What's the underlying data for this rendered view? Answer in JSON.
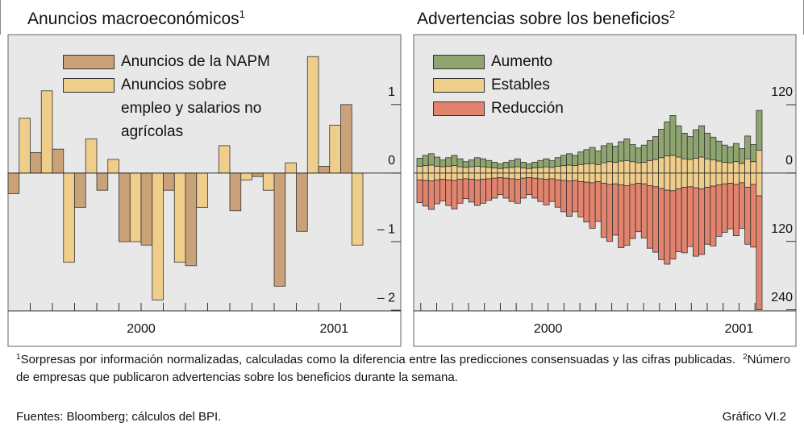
{
  "chart_data": [
    {
      "type": "bar",
      "title": "Anuncios macroeconómicos",
      "title_note": "1",
      "categories": [
        null,
        null,
        null,
        null,
        null,
        null,
        null,
        null,
        null,
        null,
        null,
        null,
        null,
        null,
        null,
        null
      ],
      "series": [
        {
          "name": "Anuncios de la NAPM",
          "color": "#c9a27a",
          "values": [
            -0.3,
            0.3,
            0.35,
            -0.5,
            -0.25,
            -1.0,
            -1.05,
            -0.25,
            -1.35,
            0,
            -0.55,
            -0.05,
            -1.65,
            -0.85,
            0.1,
            1.0
          ]
        },
        {
          "name": "Anuncios sobre empleo y salarios no agrícolas",
          "color": "#efcd8a",
          "values": [
            0.8,
            1.2,
            -1.3,
            0.5,
            0.2,
            -1.0,
            -1.85,
            -1.3,
            -0.5,
            0.4,
            -0.1,
            -0.25,
            0.15,
            1.7,
            0.7,
            -1.05
          ]
        }
      ],
      "ylim": [
        -2.01,
        2.02
      ],
      "yticks": [
        1,
        0,
        {
          "value": -1,
          "label": "– 1"
        },
        {
          "value": -2,
          "label": "– 2"
        }
      ],
      "xticks": [
        {
          "value": 6,
          "label": "2000"
        },
        {
          "value": 14.7,
          "label": "2001"
        }
      ]
    },
    {
      "type": "diverging_bar",
      "title": "Advertencias sobre los beneficios",
      "title_note": "2",
      "categories": [
        null,
        null,
        null,
        null,
        null,
        null,
        null,
        null,
        null,
        null,
        null,
        null,
        null,
        null,
        null,
        null,
        null,
        null,
        null,
        null,
        null,
        null,
        null,
        null,
        null,
        null,
        null,
        null,
        null,
        null,
        null,
        null,
        null,
        null,
        null,
        null,
        null,
        null,
        null,
        null,
        null,
        null,
        null,
        null,
        null,
        null,
        null,
        null,
        null,
        null,
        null,
        null,
        null,
        null,
        null,
        null,
        null,
        null,
        null,
        null
      ],
      "series": [
        {
          "name": "Aumento",
          "color": "#8fa570",
          "values": [
            14,
            18,
            20,
            16,
            12,
            15,
            18,
            14,
            10,
            12,
            15,
            14,
            12,
            10,
            8,
            10,
            12,
            14,
            10,
            8,
            10,
            12,
            14,
            12,
            15,
            18,
            20,
            18,
            22,
            25,
            28,
            24,
            30,
            32,
            28,
            34,
            38,
            30,
            26,
            30,
            35,
            40,
            50,
            60,
            70,
            55,
            45,
            40,
            50,
            55,
            45,
            40,
            35,
            30,
            28,
            32,
            26,
            40,
            30,
            70
          ]
        },
        {
          "name": "Estables",
          "color": "#efcd8a",
          "baseline": "center",
          "values": [
            24,
            26,
            28,
            24,
            22,
            24,
            26,
            22,
            20,
            22,
            24,
            22,
            20,
            18,
            16,
            18,
            20,
            22,
            18,
            16,
            18,
            20,
            22,
            20,
            24,
            26,
            28,
            26,
            30,
            32,
            34,
            30,
            36,
            40,
            38,
            42,
            44,
            40,
            36,
            38,
            44,
            48,
            54,
            60,
            62,
            56,
            50,
            48,
            52,
            56,
            50,
            46,
            42,
            38,
            36,
            40,
            34,
            50,
            40,
            80
          ]
        },
        {
          "name": "Reducción",
          "color": "#e2836e",
          "values": [
            -40,
            -45,
            -50,
            -42,
            -38,
            -45,
            -50,
            -42,
            -35,
            -40,
            -45,
            -42,
            -38,
            -35,
            -30,
            -35,
            -40,
            -42,
            -35,
            -30,
            -35,
            -40,
            -45,
            -40,
            -48,
            -55,
            -62,
            -55,
            -62,
            -70,
            -80,
            -70,
            -95,
            -100,
            -90,
            -110,
            -105,
            -95,
            -85,
            -95,
            -110,
            -115,
            -125,
            -130,
            -120,
            -110,
            -115,
            -105,
            -120,
            -115,
            -100,
            -105,
            -90,
            -85,
            -80,
            -90,
            -80,
            -100,
            -110,
            -200
          ]
        }
      ],
      "ylim": [
        -242,
        243
      ],
      "yticks": [
        120,
        0,
        {
          "value": -120,
          "label": "120"
        },
        {
          "value": -240,
          "label": "240"
        }
      ],
      "xticks": [
        {
          "value": 22.8,
          "label": "2000"
        },
        {
          "value": 56,
          "label": "2001"
        }
      ]
    }
  ],
  "footnotes": [
    {
      "mark": "1",
      "text": "Sorpresas por información normalizadas, calculadas como la diferencia entre las predicciones consensuadas y las cifras publicadas."
    },
    {
      "mark": "2",
      "text": "Número de empresas que publicaron advertencias sobre los beneficios durante la semana."
    }
  ],
  "source": "Fuentes: Bloomberg; cálculos del BPI.",
  "figure_label": "Gráfico VI.2"
}
